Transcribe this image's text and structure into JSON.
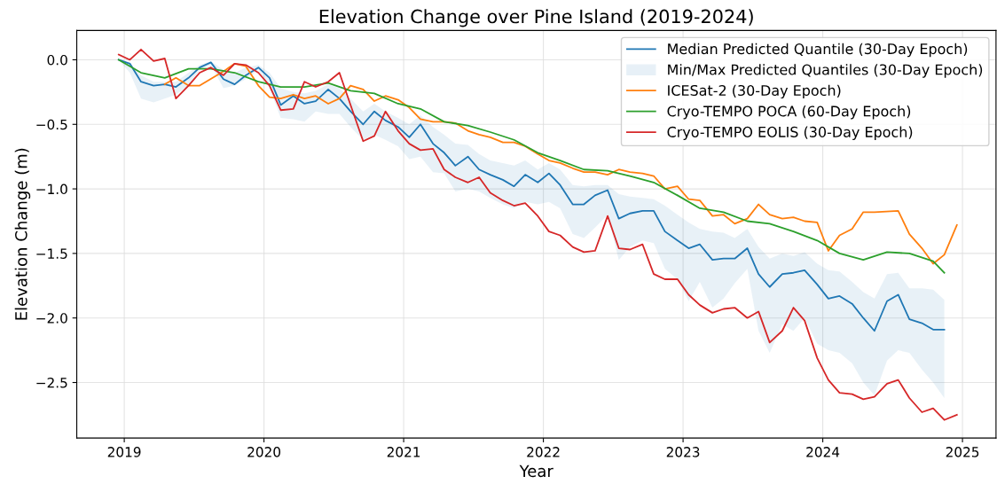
{
  "chart_data": {
    "type": "line",
    "title": "Elevation Change over Pine Island (2019-2024)",
    "xlabel": "Year",
    "ylabel": "Elevation Change (m)",
    "annotations": [
      "Min/Max Predicted Quantiles (30-Day Epoch)"
    ],
    "xlim": [
      2018.66,
      2025.24
    ],
    "xticks": [
      2019,
      2020,
      2021,
      2022,
      2023,
      2024,
      2025
    ],
    "ylim": [
      -2.93,
      0.227
    ],
    "yticks": [
      {
        "value": 0,
        "label": "0.0"
      },
      {
        "value": -0.5,
        "label": "−0.5"
      },
      {
        "value": -1,
        "label": "−1.0"
      },
      {
        "value": -1.5,
        "label": "−1.5"
      },
      {
        "value": -2,
        "label": "−2.0"
      },
      {
        "value": -2.5,
        "label": "−2.5"
      }
    ],
    "grid": true,
    "legend": "top right",
    "series": [
      {
        "name": "Median Predicted Quantile (30-Day Epoch)",
        "color": "#1f77b4",
        "x": [
          2018.96,
          2019.04,
          2019.12,
          2019.21,
          2019.29,
          2019.37,
          2019.46,
          2019.54,
          2019.62,
          2019.71,
          2019.79,
          2019.87,
          2019.96,
          2020.04,
          2020.12,
          2020.21,
          2020.29,
          2020.37,
          2020.46,
          2020.54,
          2020.62,
          2020.71,
          2020.79,
          2020.87,
          2020.96,
          2021.04,
          2021.12,
          2021.21,
          2021.29,
          2021.37,
          2021.46,
          2021.54,
          2021.62,
          2021.71,
          2021.79,
          2021.87,
          2021.96,
          2022.04,
          2022.12,
          2022.21,
          2022.29,
          2022.37,
          2022.46,
          2022.54,
          2022.62,
          2022.71,
          2022.79,
          2022.87,
          2022.96,
          2023.04,
          2023.12,
          2023.21,
          2023.29,
          2023.37,
          2023.46,
          2023.54,
          2023.62,
          2023.71,
          2023.79,
          2023.87,
          2023.96,
          2024.04,
          2024.12,
          2024.21,
          2024.29,
          2024.37,
          2024.46,
          2024.54,
          2024.62,
          2024.71,
          2024.79,
          2024.87
        ],
        "values": [
          0.0,
          -0.03,
          -0.17,
          -0.2,
          -0.19,
          -0.21,
          -0.14,
          -0.06,
          -0.02,
          -0.15,
          -0.19,
          -0.12,
          -0.06,
          -0.14,
          -0.35,
          -0.28,
          -0.34,
          -0.32,
          -0.23,
          -0.3,
          -0.4,
          -0.5,
          -0.4,
          -0.47,
          -0.52,
          -0.6,
          -0.5,
          -0.65,
          -0.72,
          -0.82,
          -0.75,
          -0.85,
          -0.89,
          -0.93,
          -0.98,
          -0.89,
          -0.95,
          -0.88,
          -0.97,
          -1.12,
          -1.12,
          -1.05,
          -1.01,
          -1.23,
          -1.19,
          -1.17,
          -1.17,
          -1.33,
          -1.4,
          -1.46,
          -1.43,
          -1.55,
          -1.54,
          -1.54,
          -1.46,
          -1.66,
          -1.76,
          -1.66,
          -1.65,
          -1.63,
          -1.74,
          -1.85,
          -1.83,
          -1.89,
          -2.0,
          -2.1,
          -1.87,
          -1.82,
          -2.01,
          -2.04,
          -2.09,
          -2.09
        ],
        "upper": [
          0.0,
          -0.02,
          -0.12,
          -0.17,
          -0.17,
          -0.17,
          -0.1,
          -0.04,
          -0.01,
          -0.08,
          -0.1,
          -0.06,
          -0.04,
          -0.1,
          -0.22,
          -0.25,
          -0.26,
          -0.24,
          -0.19,
          -0.22,
          -0.3,
          -0.4,
          -0.34,
          -0.4,
          -0.45,
          -0.5,
          -0.43,
          -0.52,
          -0.58,
          -0.65,
          -0.66,
          -0.73,
          -0.78,
          -0.8,
          -0.82,
          -0.78,
          -0.85,
          -0.8,
          -0.85,
          -0.97,
          -0.98,
          -0.97,
          -0.97,
          -1.04,
          -1.06,
          -1.07,
          -1.08,
          -1.13,
          -1.2,
          -1.26,
          -1.31,
          -1.33,
          -1.34,
          -1.38,
          -1.31,
          -1.45,
          -1.54,
          -1.5,
          -1.52,
          -1.49,
          -1.58,
          -1.63,
          -1.64,
          -1.72,
          -1.8,
          -1.85,
          -1.66,
          -1.65,
          -1.77,
          -1.77,
          -1.78,
          -1.86
        ],
        "lower": [
          0.0,
          -0.1,
          -0.3,
          -0.33,
          -0.3,
          -0.27,
          -0.2,
          -0.08,
          -0.04,
          -0.22,
          -0.2,
          -0.15,
          -0.08,
          -0.22,
          -0.45,
          -0.46,
          -0.48,
          -0.4,
          -0.42,
          -0.42,
          -0.52,
          -0.62,
          -0.58,
          -0.62,
          -0.67,
          -0.77,
          -0.75,
          -0.87,
          -0.88,
          -1.02,
          -1.0,
          -1.02,
          -1.07,
          -1.12,
          -1.15,
          -1.1,
          -1.12,
          -1.1,
          -1.15,
          -1.35,
          -1.38,
          -1.3,
          -1.2,
          -1.55,
          -1.45,
          -1.4,
          -1.42,
          -1.62,
          -1.7,
          -1.87,
          -1.72,
          -1.92,
          -1.85,
          -1.73,
          -1.62,
          -2.1,
          -2.27,
          -2.05,
          -2.1,
          -2.0,
          -2.2,
          -2.25,
          -2.27,
          -2.35,
          -2.5,
          -2.6,
          -2.33,
          -2.25,
          -2.27,
          -2.4,
          -2.5,
          -2.62
        ]
      },
      {
        "name": "ICESat-2 (30-Day Epoch)",
        "color": "#ff7f0e",
        "x": [
          2019.29,
          2019.37,
          2019.46,
          2019.54,
          2019.71,
          2019.79,
          2019.87,
          2019.96,
          2020.04,
          2020.12,
          2020.21,
          2020.29,
          2020.37,
          2020.46,
          2020.54,
          2020.62,
          2020.71,
          2020.79,
          2020.87,
          2020.96,
          2021.04,
          2021.12,
          2021.21,
          2021.29,
          2021.37,
          2021.46,
          2021.54,
          2021.62,
          2021.71,
          2021.79,
          2021.87,
          2021.96,
          2022.04,
          2022.12,
          2022.21,
          2022.29,
          2022.37,
          2022.46,
          2022.54,
          2022.62,
          2022.71,
          2022.79,
          2022.87,
          2022.96,
          2023.04,
          2023.12,
          2023.21,
          2023.29,
          2023.37,
          2023.46,
          2023.54,
          2023.62,
          2023.71,
          2023.79,
          2023.87,
          2023.96,
          2024.04,
          2024.12,
          2024.21,
          2024.29,
          2024.37,
          2024.54,
          2024.62,
          2024.71,
          2024.79,
          2024.87,
          2024.96
        ],
        "values": [
          -0.19,
          -0.14,
          -0.2,
          -0.2,
          -0.09,
          -0.03,
          -0.05,
          -0.2,
          -0.29,
          -0.3,
          -0.27,
          -0.3,
          -0.28,
          -0.34,
          -0.3,
          -0.2,
          -0.23,
          -0.32,
          -0.28,
          -0.31,
          -0.37,
          -0.46,
          -0.48,
          -0.48,
          -0.49,
          -0.55,
          -0.58,
          -0.6,
          -0.64,
          -0.64,
          -0.67,
          -0.73,
          -0.78,
          -0.8,
          -0.84,
          -0.87,
          -0.87,
          -0.89,
          -0.85,
          -0.87,
          -0.88,
          -0.9,
          -1.0,
          -0.98,
          -1.08,
          -1.09,
          -1.21,
          -1.2,
          -1.27,
          -1.23,
          -1.12,
          -1.2,
          -1.23,
          -1.22,
          -1.25,
          -1.26,
          -1.48,
          -1.36,
          -1.31,
          -1.18,
          -1.18,
          -1.17,
          -1.35,
          -1.46,
          -1.58,
          -1.51,
          -1.28
        ]
      },
      {
        "name": "Cryo-TEMPO POCA (60-Day Epoch)",
        "color": "#2ca02c",
        "x": [
          2018.96,
          2019.12,
          2019.29,
          2019.46,
          2019.62,
          2019.79,
          2019.96,
          2020.12,
          2020.29,
          2020.46,
          2020.62,
          2020.79,
          2020.96,
          2021.12,
          2021.29,
          2021.46,
          2021.62,
          2021.79,
          2021.96,
          2022.12,
          2022.29,
          2022.46,
          2022.62,
          2022.79,
          2022.96,
          2023.12,
          2023.29,
          2023.46,
          2023.62,
          2023.79,
          2023.96,
          2024.12,
          2024.29,
          2024.46,
          2024.62,
          2024.79,
          2024.87
        ],
        "values": [
          0.0,
          -0.1,
          -0.14,
          -0.07,
          -0.07,
          -0.1,
          -0.17,
          -0.21,
          -0.21,
          -0.18,
          -0.24,
          -0.26,
          -0.34,
          -0.38,
          -0.48,
          -0.51,
          -0.56,
          -0.62,
          -0.72,
          -0.78,
          -0.85,
          -0.86,
          -0.9,
          -0.95,
          -1.05,
          -1.15,
          -1.18,
          -1.25,
          -1.27,
          -1.33,
          -1.4,
          -1.5,
          -1.55,
          -1.49,
          -1.5,
          -1.56,
          -1.65
        ]
      },
      {
        "name": "Cryo-TEMPO EOLIS (30-Day Epoch)",
        "color": "#d62728",
        "x": [
          2018.96,
          2019.04,
          2019.12,
          2019.21,
          2019.29,
          2019.37,
          2019.46,
          2019.54,
          2019.62,
          2019.71,
          2019.79,
          2019.87,
          2019.96,
          2020.04,
          2020.12,
          2020.21,
          2020.29,
          2020.37,
          2020.46,
          2020.54,
          2020.62,
          2020.71,
          2020.79,
          2020.87,
          2020.96,
          2021.04,
          2021.12,
          2021.21,
          2021.29,
          2021.37,
          2021.46,
          2021.54,
          2021.62,
          2021.71,
          2021.79,
          2021.87,
          2021.96,
          2022.04,
          2022.12,
          2022.21,
          2022.29,
          2022.37,
          2022.46,
          2022.54,
          2022.62,
          2022.71,
          2022.79,
          2022.87,
          2022.96,
          2023.04,
          2023.12,
          2023.21,
          2023.29,
          2023.37,
          2023.46,
          2023.54,
          2023.62,
          2023.71,
          2023.79,
          2023.87,
          2023.96,
          2024.04,
          2024.12,
          2024.21,
          2024.29,
          2024.37,
          2024.46,
          2024.54,
          2024.62,
          2024.71,
          2024.79,
          2024.87,
          2024.96
        ],
        "values": [
          0.04,
          0.0,
          0.08,
          -0.01,
          0.01,
          -0.3,
          -0.2,
          -0.1,
          -0.06,
          -0.12,
          -0.03,
          -0.04,
          -0.1,
          -0.2,
          -0.39,
          -0.38,
          -0.17,
          -0.21,
          -0.17,
          -0.1,
          -0.35,
          -0.63,
          -0.59,
          -0.4,
          -0.55,
          -0.65,
          -0.7,
          -0.69,
          -0.85,
          -0.91,
          -0.95,
          -0.91,
          -1.03,
          -1.09,
          -1.13,
          -1.11,
          -1.21,
          -1.33,
          -1.36,
          -1.45,
          -1.49,
          -1.48,
          -1.21,
          -1.46,
          -1.47,
          -1.43,
          -1.66,
          -1.7,
          -1.7,
          -1.82,
          -1.9,
          -1.96,
          -1.93,
          -1.92,
          -2.0,
          -1.95,
          -2.19,
          -2.1,
          -1.92,
          -2.02,
          -2.31,
          -2.48,
          -2.58,
          -2.59,
          -2.63,
          -2.61,
          -2.51,
          -2.48,
          -2.62,
          -2.73,
          -2.7,
          -2.79,
          -2.75
        ]
      }
    ]
  }
}
